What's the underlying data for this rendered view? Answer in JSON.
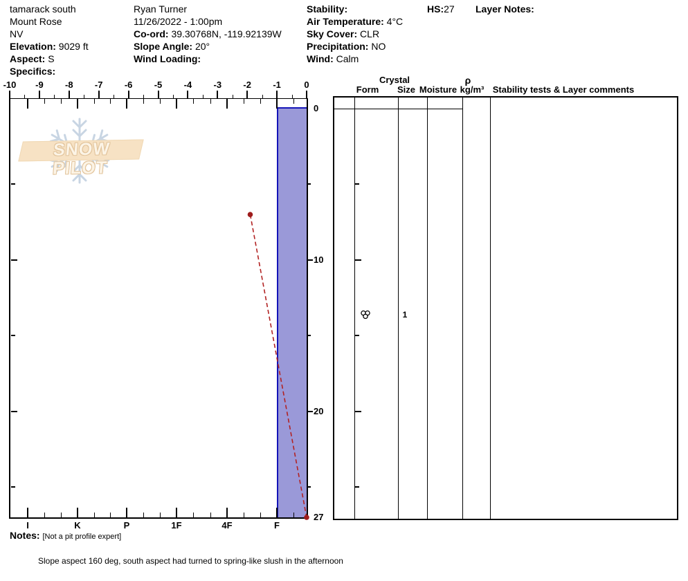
{
  "header": {
    "site": [
      {
        "label": "",
        "value": "tamarack south"
      },
      {
        "label": "",
        "value": "Mount Rose"
      },
      {
        "label": "",
        "value": "NV"
      },
      {
        "label": "Elevation:",
        "value": "9029 ft"
      },
      {
        "label": "Aspect:",
        "value": "S"
      },
      {
        "label": "Specifics:",
        "value": ""
      }
    ],
    "observer": [
      {
        "label": "",
        "value": "Ryan Turner"
      },
      {
        "label": "",
        "value": "11/26/2022 - 1:00pm"
      },
      {
        "label": "Co-ord:",
        "value": "39.30768N, -119.92139W"
      },
      {
        "label": "Slope Angle:",
        "value": "20°"
      },
      {
        "label": "Wind Loading:",
        "value": ""
      }
    ],
    "conditions": [
      {
        "label": "Stability:",
        "value": ""
      },
      {
        "label": "Air Temperature:",
        "value": "4°C"
      },
      {
        "label": "Sky Cover:",
        "value": "CLR"
      },
      {
        "label": "Precipitation:",
        "value": "NO"
      },
      {
        "label": "Wind:",
        "value": "Calm"
      }
    ],
    "hs_label": "HS:",
    "hs_value": "27",
    "layer_notes_label": "Layer Notes:"
  },
  "watermark": {
    "text": "SNOW PILOT"
  },
  "chart_data": {
    "type": "line",
    "title": "Snow pit profile: temperature and hand hardness vs depth",
    "temperature_axis": {
      "unit": "°C",
      "min": -10,
      "max": 0,
      "major_step": 1,
      "minor_step": 0.5,
      "labels": [
        "-10",
        "-9",
        "-8",
        "-7",
        "-6",
        "-5",
        "-4",
        "-3",
        "-2",
        "-1",
        "0"
      ]
    },
    "hardness_axis": {
      "categories": [
        "I",
        "K",
        "P",
        "1F",
        "4F",
        "F"
      ],
      "minor_ticks_per_interval": 2
    },
    "depth_axis": {
      "unit": "cm",
      "top": 0,
      "pit_depth": 27,
      "tick_step": 5,
      "labeled_ticks": [
        "0",
        "10",
        "20"
      ],
      "pit_depth_label": "27"
    },
    "temperature_profile": [
      {
        "temp_c": -1.9,
        "depth_cm": 7
      },
      {
        "temp_c": 0,
        "depth_cm": 27
      }
    ],
    "layers": [
      {
        "top_cm": 0,
        "bottom_cm": 27,
        "hardness": "F",
        "grain_form": "MF melt forms (clustered rounded grains)",
        "grain_size_mm": "1"
      }
    ],
    "hs_cm": 27,
    "legend_position": "none",
    "grid": false
  },
  "table": {
    "header": {
      "crystal": "Crystal",
      "form": "Form",
      "size": "Size",
      "moisture": "Moisture",
      "rho": "ρ",
      "rho_unit": "kg/m³",
      "comments": "Stability tests & Layer comments"
    },
    "rows": [
      {
        "form_symbol": "melt-forms-cluster",
        "size": "1",
        "moisture": "",
        "rho": "",
        "comments": ""
      }
    ]
  },
  "notes": {
    "label": "Notes:",
    "value": "[Not a pit profile expert]"
  },
  "footer_comment": "Slope aspect 160 deg, south aspect had turned to spring-like slush in the afternoon",
  "colors": {
    "layer_fill": "#9a99d8",
    "layer_border": "#1414b8",
    "temp_line": "#b22222",
    "temp_point": "#9e1c1c",
    "axis": "#000000",
    "watermark_band": "#f7e2c4",
    "watermark_flake": "#c8d5e3"
  }
}
